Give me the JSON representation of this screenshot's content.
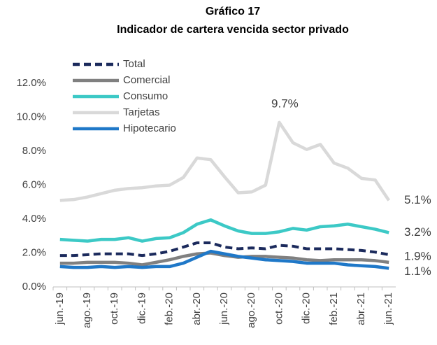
{
  "chart_data": {
    "type": "line",
    "title": "Gráfico 17",
    "subtitle": "Indicador de cartera vencida sector privado",
    "categories": [
      "jun.-19",
      null,
      "ago.-19",
      null,
      "oct.-19",
      null,
      "dic.-19",
      null,
      "feb.-20",
      null,
      "abr.-20",
      null,
      "jun.-20",
      null,
      "ago.-20",
      null,
      "oct.-20",
      null,
      "dic.-20",
      null,
      "feb.-21",
      null,
      "abr.-21",
      null,
      "jun.-21"
    ],
    "series": [
      {
        "name": "Total",
        "color": "#1b2a5c",
        "dashed": true,
        "values": [
          1.85,
          1.85,
          1.9,
          1.95,
          1.95,
          1.95,
          1.85,
          1.95,
          2.1,
          2.35,
          2.6,
          2.6,
          2.35,
          2.25,
          2.3,
          2.25,
          2.45,
          2.4,
          2.25,
          2.25,
          2.25,
          2.2,
          2.15,
          2.05,
          1.9
        ],
        "value_labels": [
          null,
          null,
          null,
          null,
          null,
          null,
          null,
          null,
          null,
          null,
          null,
          null,
          null,
          null,
          null,
          null,
          null,
          null,
          null,
          null,
          null,
          null,
          null,
          null,
          "1.9%"
        ]
      },
      {
        "name": "Comercial",
        "color": "#808080",
        "values": [
          1.4,
          1.4,
          1.45,
          1.45,
          1.45,
          1.4,
          1.3,
          1.45,
          1.6,
          1.8,
          1.95,
          2.0,
          1.85,
          1.75,
          1.8,
          1.8,
          1.75,
          1.7,
          1.6,
          1.55,
          1.6,
          1.6,
          1.6,
          1.55,
          1.45
        ]
      },
      {
        "name": "Consumo",
        "color": "#3cc9c6",
        "values": [
          2.8,
          2.75,
          2.7,
          2.8,
          2.8,
          2.9,
          2.7,
          2.85,
          2.9,
          3.2,
          3.7,
          3.95,
          3.6,
          3.3,
          3.15,
          3.15,
          3.25,
          3.45,
          3.35,
          3.55,
          3.6,
          3.7,
          3.55,
          3.4,
          3.2
        ],
        "value_labels": [
          null,
          null,
          null,
          null,
          null,
          null,
          null,
          null,
          null,
          null,
          null,
          null,
          null,
          null,
          null,
          null,
          null,
          null,
          null,
          null,
          null,
          null,
          null,
          null,
          "3.2%"
        ]
      },
      {
        "name": "Tarjetas",
        "color": "#d9d9d9",
        "values": [
          5.1,
          5.15,
          5.3,
          5.5,
          5.7,
          5.8,
          5.85,
          5.95,
          6.0,
          6.45,
          7.6,
          7.5,
          6.5,
          5.55,
          5.6,
          6.0,
          9.7,
          8.5,
          8.1,
          8.4,
          7.3,
          7.0,
          6.4,
          6.3,
          5.1
        ],
        "value_labels": [
          null,
          null,
          null,
          null,
          null,
          null,
          null,
          null,
          null,
          null,
          null,
          null,
          null,
          null,
          null,
          null,
          "9.7%",
          null,
          null,
          null,
          null,
          null,
          null,
          null,
          "5.1%"
        ]
      },
      {
        "name": "Hipotecario",
        "color": "#1f78c8",
        "values": [
          1.2,
          1.15,
          1.15,
          1.2,
          1.15,
          1.2,
          1.15,
          1.2,
          1.2,
          1.4,
          1.75,
          2.1,
          1.95,
          1.8,
          1.7,
          1.6,
          1.55,
          1.5,
          1.4,
          1.4,
          1.4,
          1.3,
          1.25,
          1.2,
          1.1
        ],
        "value_labels": [
          null,
          null,
          null,
          null,
          null,
          null,
          null,
          null,
          null,
          null,
          null,
          null,
          null,
          null,
          null,
          null,
          null,
          null,
          null,
          null,
          null,
          null,
          null,
          null,
          "1.1%"
        ]
      }
    ],
    "ylim": [
      0,
      12.5
    ],
    "yticks": [
      {
        "value": 0,
        "label": "0.0%"
      },
      {
        "value": 2,
        "label": "2.0%"
      },
      {
        "value": 4,
        "label": "4.0%"
      },
      {
        "value": 6,
        "label": "6.0%"
      },
      {
        "value": 8,
        "label": "8.0%"
      },
      {
        "value": 10,
        "label": "10.0%"
      },
      {
        "value": 12,
        "label": "12.0%"
      }
    ],
    "legend": "upper-left"
  }
}
